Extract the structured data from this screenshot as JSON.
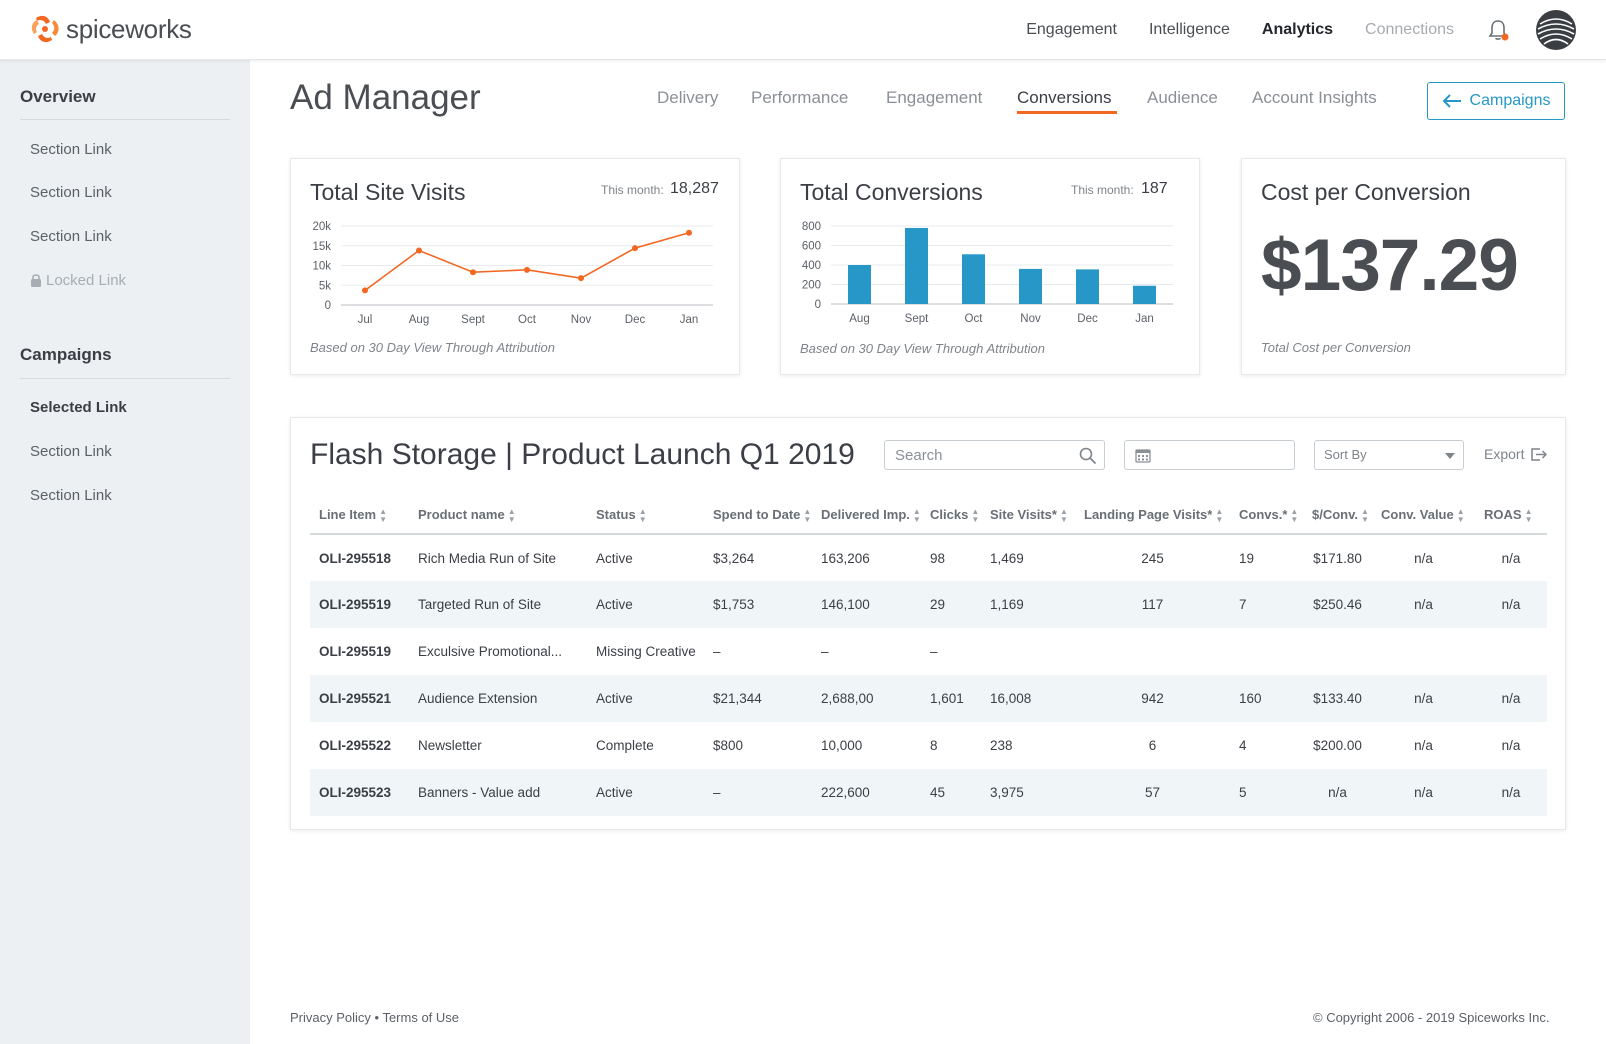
{
  "brand": {
    "name": "spiceworks",
    "accent": "#f26822",
    "link_color": "#2697c7"
  },
  "topnav": {
    "items": [
      {
        "label": "Engagement",
        "state": "normal"
      },
      {
        "label": "Intelligence",
        "state": "normal"
      },
      {
        "label": "Analytics",
        "state": "active"
      },
      {
        "label": "Connections",
        "state": "muted"
      }
    ],
    "icons": [
      "bell-icon",
      "avatar"
    ]
  },
  "sidebar": {
    "sections": [
      {
        "heading": "Overview",
        "links": [
          {
            "label": "Section Link",
            "state": "normal"
          },
          {
            "label": "Section Link",
            "state": "normal"
          },
          {
            "label": "Section Link",
            "state": "normal"
          },
          {
            "label": "Locked Link",
            "state": "locked"
          }
        ]
      },
      {
        "heading": "Campaigns",
        "links": [
          {
            "label": "Selected Link",
            "state": "selected"
          },
          {
            "label": "Section Link",
            "state": "normal"
          },
          {
            "label": "Section Link",
            "state": "normal"
          }
        ]
      }
    ]
  },
  "header": {
    "title": "Ad Manager",
    "tabs": [
      "Delivery",
      "Performance",
      "Engagement",
      "Conversions",
      "Audience",
      "Account Insights"
    ],
    "active_tab": "Conversions",
    "campaigns_button": "Campaigns"
  },
  "cards": {
    "site_visits": {
      "title": "Total Site Visits",
      "month_label": "This month:",
      "month_value": "18,287",
      "note": "Based on 30 Day View Through Attribution"
    },
    "conversions": {
      "title": "Total Conversions",
      "month_label": "This month:",
      "month_value": "187",
      "note": "Based on 30 Day View Through Attribution"
    },
    "cost": {
      "title": "Cost per Conversion",
      "value": "$137.29",
      "note": "Total Cost per Conversion"
    }
  },
  "chart_data": [
    {
      "type": "line",
      "title": "Total Site Visits",
      "categories": [
        "Jul",
        "Aug",
        "Sept",
        "Oct",
        "Nov",
        "Dec",
        "Jan"
      ],
      "values": [
        3700,
        13800,
        8300,
        8900,
        6800,
        14400,
        18287
      ],
      "yticks": [
        "20k",
        "15k",
        "10k",
        "5k",
        "0"
      ],
      "ylim": [
        0,
        20000
      ],
      "color": "#f26822",
      "grid": true
    },
    {
      "type": "bar",
      "title": "Total Conversions",
      "categories": [
        "Aug",
        "Sept",
        "Oct",
        "Nov",
        "Dec",
        "Jan"
      ],
      "values": [
        400,
        780,
        510,
        360,
        355,
        187
      ],
      "yticks": [
        "800",
        "600",
        "400",
        "200",
        "0"
      ],
      "ylim": [
        0,
        800
      ],
      "color": "#2697c7",
      "grid": true
    }
  ],
  "table": {
    "title": "Flash Storage | Product Launch Q1 2019",
    "search_placeholder": "Search",
    "sort_label": "Sort By",
    "export_label": "Export",
    "columns": [
      "Line Item",
      "Product name",
      "Status",
      "Spend to Date",
      "Delivered Imp.",
      "Clicks",
      "Site Visits*",
      "Landing Page Visits*",
      "Convs.*",
      "$/Conv.",
      "Conv. Value",
      "ROAS"
    ],
    "rows": [
      [
        "OLI-295518",
        "Rich Media Run of Site",
        "Active",
        "$3,264",
        "163,206",
        "98",
        "1,469",
        "245",
        "19",
        "$171.80",
        "n/a",
        "n/a"
      ],
      [
        "OLI-295519",
        "Targeted Run of Site",
        "Active",
        "$1,753",
        "146,100",
        "29",
        "1,169",
        "117",
        "7",
        "$250.46",
        "n/a",
        "n/a"
      ],
      [
        "OLI-295519",
        "Exculsive Promotional...",
        "Missing Creative",
        "–",
        "–",
        "–",
        "",
        "",
        "",
        "",
        "",
        ""
      ],
      [
        "OLI-295521",
        "Audience Extension",
        "Active",
        "$21,344",
        "2,688,00",
        "1,601",
        "16,008",
        "942",
        "160",
        "$133.40",
        "n/a",
        "n/a"
      ],
      [
        "OLI-295522",
        "Newsletter",
        "Complete",
        "$800",
        "10,000",
        "8",
        "238",
        "6",
        "4",
        "$200.00",
        "n/a",
        "n/a"
      ],
      [
        "OLI-295523",
        "Banners - Value add",
        "Active",
        "–",
        "222,600",
        "45",
        "3,975",
        "57",
        "5",
        "n/a",
        "n/a",
        "n/a"
      ]
    ]
  },
  "footer": {
    "left": "Privacy Policy • Terms of Use",
    "right": "© Copyright 2006 - 2019 Spiceworks Inc."
  }
}
